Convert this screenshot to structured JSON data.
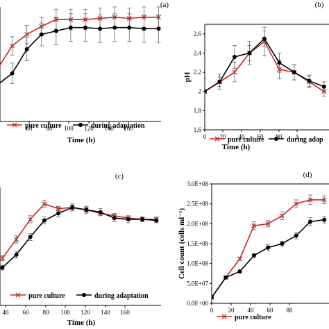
{
  "chart_data": [
    {
      "panel": "(a)",
      "type": "line",
      "xlabel": "Time (h)",
      "ylabel": "",
      "xticks": [
        "60",
        "80",
        "100",
        "120",
        "140",
        "160"
      ],
      "xlim": [
        38,
        170
      ],
      "ylim": [
        0,
        10
      ],
      "legend": [
        "pure culture",
        "during adaptation"
      ],
      "legend_position": "bottom",
      "series": [
        {
          "name": "pure culture",
          "color": "#cc2222",
          "marker": "x",
          "x": [
            36,
            48,
            60,
            72,
            84,
            96,
            108,
            120,
            132,
            144,
            156,
            168
          ],
          "y": [
            4.6,
            6.6,
            7.6,
            8.3,
            8.9,
            8.9,
            8.9,
            9.0,
            9.1,
            9.0,
            9.1,
            9.1
          ],
          "err": [
            0.8,
            0.8,
            0.8,
            0.8,
            0.9,
            0.9,
            0.9,
            0.9,
            0.9,
            0.9,
            0.9,
            0.9
          ]
        },
        {
          "name": "during adaptation",
          "color": "#000000",
          "marker": "circle",
          "x": [
            36,
            48,
            60,
            72,
            84,
            96,
            108,
            120,
            132,
            144,
            156,
            168
          ],
          "y": [
            3.2,
            4.2,
            6.3,
            7.6,
            7.9,
            8.2,
            8.2,
            8.1,
            8.2,
            8.2,
            8.1,
            8.1
          ],
          "err": [
            0.7,
            0.9,
            1.0,
            1.0,
            1.2,
            1.2,
            1.2,
            1.2,
            1.2,
            1.2,
            1.2,
            1.2
          ]
        }
      ]
    },
    {
      "panel": "(b)",
      "type": "line",
      "xlabel": "Time (h)",
      "ylabel": "pH",
      "xticks": [
        "0",
        "20",
        "40",
        "60",
        "80",
        "1"
      ],
      "yticks": [
        "1.6",
        "1.8",
        "2",
        "2.2",
        "2.4",
        "2.6"
      ],
      "xlim": [
        0,
        100
      ],
      "ylim": [
        1.6,
        2.7
      ],
      "legend": [
        "pure culture",
        "during adap"
      ],
      "legend_position": "bottom",
      "series": [
        {
          "name": "pure culture",
          "color": "#cc2222",
          "marker": "x",
          "x": [
            0,
            12,
            24,
            36,
            48,
            60,
            72,
            84,
            96
          ],
          "y": [
            2.0,
            2.1,
            2.2,
            2.4,
            2.52,
            2.23,
            2.2,
            2.1,
            2.0
          ],
          "err": [
            0.0,
            0.05,
            0.1,
            0.08,
            0.15,
            0.1,
            0.08,
            0.06,
            0.05
          ]
        },
        {
          "name": "during adaptation",
          "color": "#000000",
          "marker": "circle",
          "x": [
            0,
            12,
            24,
            36,
            48,
            60,
            72,
            84,
            96
          ],
          "y": [
            2.0,
            2.1,
            2.36,
            2.4,
            2.55,
            2.3,
            2.2,
            2.11,
            2.05
          ],
          "err": [
            0.0,
            0.08,
            0.12,
            0.12,
            0.08,
            0.1,
            0.08,
            0.06,
            0.05
          ]
        }
      ]
    },
    {
      "panel": "(c)",
      "type": "line",
      "xlabel": "Time (h)",
      "ylabel": "",
      "xticks": [
        "40",
        "60",
        "80",
        "100",
        "120",
        "140",
        "160"
      ],
      "xlim": [
        34,
        172
      ],
      "ylim": [
        0,
        10
      ],
      "legend": [
        "pure culture",
        "during adaptation"
      ],
      "legend_position": "bottom",
      "series": [
        {
          "name": "pure culture",
          "color": "#cc2222",
          "marker": "x",
          "x": [
            36,
            48,
            60,
            72,
            84,
            96,
            108,
            120,
            132,
            144,
            156,
            168
          ],
          "y": [
            4.0,
            5.6,
            7.3,
            8.6,
            8.2,
            8.3,
            8.1,
            7.8,
            7.6,
            7.4,
            7.3,
            7.3
          ],
          "err": [
            0.2,
            0.3,
            0.3,
            0.3,
            0.2,
            0.2,
            0.2,
            0.2,
            0.2,
            0.2,
            0.2,
            0.2
          ]
        },
        {
          "name": "during adaptation",
          "color": "#000000",
          "marker": "circle",
          "x": [
            36,
            48,
            60,
            72,
            84,
            96,
            108,
            120,
            132,
            144,
            156,
            168
          ],
          "y": [
            3.2,
            4.3,
            5.8,
            7.2,
            7.8,
            8.3,
            8.1,
            7.9,
            7.4,
            7.3,
            7.3,
            7.2
          ],
          "err": [
            0.2,
            0.3,
            0.3,
            0.3,
            0.3,
            0.3,
            0.3,
            0.3,
            0.3,
            0.3,
            0.2,
            0.2
          ]
        }
      ]
    },
    {
      "panel": "(d)",
      "type": "line",
      "xlabel": "",
      "ylabel": "Cell count (cells ml⁻¹)",
      "xticks": [
        "0",
        "20",
        "40",
        "60",
        "80"
      ],
      "yticks": [
        "0.0E+00",
        "5.0E+07",
        "1.0E+08",
        "1.5E+08",
        "2.0E+08",
        "2.5E+08",
        "3.0E+08"
      ],
      "xlim": [
        0,
        100
      ],
      "ylim": [
        0,
        300000000
      ],
      "legend": [
        "pure culture"
      ],
      "legend_position": "bottom",
      "series": [
        {
          "name": "pure culture",
          "color": "#cc2222",
          "marker": "x",
          "x": [
            0,
            12,
            24,
            36,
            48,
            60,
            72,
            84,
            96
          ],
          "y": [
            15000000,
            65000000,
            112000000,
            195000000,
            200000000,
            220000000,
            250000000,
            260000000,
            260000000
          ],
          "err": [
            0,
            0,
            4000000,
            10000000,
            8000000,
            10000000,
            10000000,
            12000000,
            10000000
          ]
        },
        {
          "name": "during adaptation",
          "color": "#000000",
          "marker": "circle",
          "x": [
            0,
            12,
            24,
            36,
            48,
            60,
            72,
            84,
            96
          ],
          "y": [
            15000000,
            65000000,
            80000000,
            120000000,
            140000000,
            150000000,
            170000000,
            205000000,
            210000000
          ],
          "err": [
            0,
            0,
            4000000,
            5000000,
            8000000,
            6000000,
            8000000,
            10000000,
            8000000
          ]
        }
      ]
    }
  ]
}
